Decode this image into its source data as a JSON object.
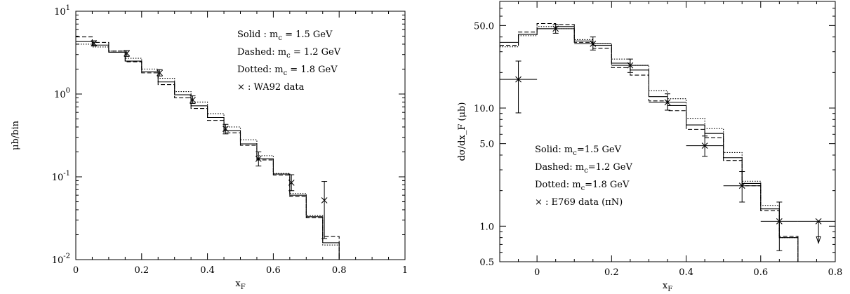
{
  "chart_data": [
    {
      "type": "line",
      "chart_style": "step-histogram with data points",
      "xlabel_main": "x",
      "xlabel_sub": "F",
      "ylabel": "μb/bin",
      "x_range": [
        0,
        1
      ],
      "y_range": [
        0.01,
        10
      ],
      "y_scale": "log",
      "x_ticks": [
        "0",
        "0.2",
        "0.4",
        "0.6",
        "0.8",
        "1"
      ],
      "y_ticks": [
        "10^-2",
        "10^-1",
        "10^0",
        "10^1"
      ],
      "legend_position": "top-right",
      "legend": [
        {
          "label": "Solid : m",
          "sub": "c",
          "tail": " = 1.5 GeV"
        },
        {
          "label": "Dashed: m",
          "sub": "c",
          "tail": " = 1.2 GeV"
        },
        {
          "label": "Dotted: m",
          "sub": "c",
          "tail": " = 1.8 GeV"
        },
        {
          "label": "× : WA92 data",
          "sub": "",
          "tail": ""
        }
      ],
      "bin_edges": [
        0,
        0.05,
        0.1,
        0.15,
        0.2,
        0.25,
        0.3,
        0.35,
        0.4,
        0.45,
        0.5,
        0.55,
        0.6,
        0.65,
        0.7,
        0.75,
        0.8
      ],
      "series": [
        {
          "style": "solid",
          "values": [
            4.3,
            3.9,
            3.2,
            2.5,
            1.85,
            1.4,
            0.98,
            0.72,
            0.52,
            0.36,
            0.25,
            0.165,
            0.108,
            0.06,
            0.033,
            0.016
          ]
        },
        {
          "style": "dashed",
          "values": [
            4.9,
            4.2,
            3.3,
            2.45,
            1.8,
            1.3,
            0.9,
            0.67,
            0.48,
            0.34,
            0.24,
            0.16,
            0.105,
            0.058,
            0.032,
            0.019
          ]
        },
        {
          "style": "dotted",
          "values": [
            4.0,
            3.7,
            3.3,
            2.7,
            2.0,
            1.55,
            1.07,
            0.8,
            0.58,
            0.4,
            0.28,
            0.18,
            0.11,
            0.063,
            0.034,
            0.015
          ]
        }
      ],
      "data_points": [
        {
          "x": 0.055,
          "y": 4.1,
          "ylo": 3.8,
          "yhi": 4.4
        },
        {
          "x": 0.155,
          "y": 3.1,
          "ylo": 2.85,
          "yhi": 3.35
        },
        {
          "x": 0.255,
          "y": 1.8,
          "ylo": 1.65,
          "yhi": 1.97
        },
        {
          "x": 0.355,
          "y": 0.85,
          "ylo": 0.77,
          "yhi": 0.95
        },
        {
          "x": 0.455,
          "y": 0.38,
          "ylo": 0.33,
          "yhi": 0.43
        },
        {
          "x": 0.555,
          "y": 0.165,
          "ylo": 0.135,
          "yhi": 0.2
        },
        {
          "x": 0.655,
          "y": 0.085,
          "ylo": 0.068,
          "yhi": 0.106
        },
        {
          "x": 0.755,
          "y": 0.052,
          "ylo": 0.018,
          "yhi": 0.088
        }
      ]
    },
    {
      "type": "line",
      "chart_style": "step-histogram with data points",
      "xlabel_main": "x",
      "xlabel_sub": "F",
      "ylabel": "dσ/dx_F (μb)",
      "x_range": [
        -0.1,
        0.8
      ],
      "y_range": [
        0.5,
        80
      ],
      "y_scale": "log",
      "x_ticks": [
        "0",
        "0.2",
        "0.4",
        "0.6",
        "0.8"
      ],
      "y_ticks": [
        "0.5",
        "1.0",
        "5.0",
        "10.0",
        "50.0"
      ],
      "legend_position": "bottom-left",
      "legend": [
        {
          "label": "Solid: m",
          "sub": "c",
          "tail": "=1.5 GeV"
        },
        {
          "label": "Dashed: m",
          "sub": "c",
          "tail": "=1.2 GeV"
        },
        {
          "label": "Dotted: m",
          "sub": "c",
          "tail": "=1.8 GeV"
        },
        {
          "label": "× : E769 data (πN)",
          "sub": "",
          "tail": ""
        }
      ],
      "bin_edges": [
        -0.1,
        -0.05,
        0,
        0.05,
        0.1,
        0.15,
        0.2,
        0.25,
        0.3,
        0.35,
        0.4,
        0.45,
        0.5,
        0.55,
        0.6,
        0.65,
        0.7
      ],
      "series": [
        {
          "style": "solid",
          "values": [
            36,
            42,
            47,
            49,
            37,
            34,
            24,
            21,
            12.5,
            10.5,
            7.2,
            6.1,
            3.8,
            2.3,
            1.4,
            0.8
          ]
        },
        {
          "style": "dashed",
          "values": [
            34,
            44,
            52,
            51,
            36,
            32,
            22,
            19,
            11.5,
            9.5,
            6.6,
            5.6,
            3.6,
            2.2,
            1.35,
            0.82
          ]
        },
        {
          "style": "dotted",
          "values": [
            33,
            41,
            49,
            47,
            38,
            35,
            26,
            23,
            14,
            12,
            8.2,
            6.7,
            4.2,
            2.4,
            1.5,
            0.8
          ]
        }
      ],
      "data_points": [
        {
          "x": -0.05,
          "y": 17.5,
          "ylo": 9.1,
          "yhi": 25,
          "xlo": -0.1,
          "xhi": 0.0
        },
        {
          "x": 0.05,
          "y": 47,
          "ylo": 43,
          "yhi": 51,
          "xlo": 0.0,
          "xhi": 0.1
        },
        {
          "x": 0.15,
          "y": 35,
          "ylo": 31,
          "yhi": 40,
          "xlo": 0.1,
          "xhi": 0.2
        },
        {
          "x": 0.25,
          "y": 23,
          "ylo": 20,
          "yhi": 26,
          "xlo": 0.2,
          "xhi": 0.3
        },
        {
          "x": 0.35,
          "y": 11.2,
          "ylo": 9.6,
          "yhi": 13.2,
          "xlo": 0.3,
          "xhi": 0.4
        },
        {
          "x": 0.45,
          "y": 4.8,
          "ylo": 3.9,
          "yhi": 5.8,
          "xlo": 0.4,
          "xhi": 0.5
        },
        {
          "x": 0.55,
          "y": 2.2,
          "ylo": 1.6,
          "yhi": 2.9,
          "xlo": 0.5,
          "xhi": 0.6
        },
        {
          "x": 0.65,
          "y": 1.1,
          "ylo": 0.62,
          "yhi": 1.6,
          "xlo": 0.6,
          "xhi": 0.7
        },
        {
          "x": 0.755,
          "y": 1.1,
          "ylo": 1.1,
          "yhi": 1.1,
          "xlo": 0.7,
          "xhi": 0.8,
          "upper_limit": true
        }
      ]
    }
  ]
}
